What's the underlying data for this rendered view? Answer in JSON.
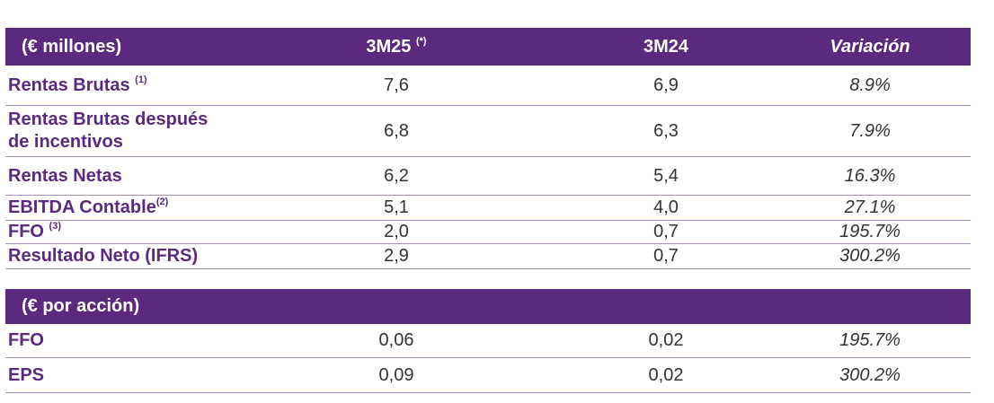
{
  "table1": {
    "header": {
      "col1": "(€ millones)",
      "col2": "3M25",
      "col2_sup": "(*)",
      "col3": "3M24",
      "col4": "Variación"
    },
    "rows": [
      {
        "label": "Rentas Brutas ",
        "sup": "(1)",
        "v1": "7,6",
        "v2": "6,9",
        "var": "8.9%"
      },
      {
        "label_line1": "Rentas Brutas después",
        "label_line2": "de incentivos",
        "v1": "6,8",
        "v2": "6,3",
        "var": "7.9%"
      },
      {
        "label": "Rentas Netas",
        "v1": "6,2",
        "v2": "5,4",
        "var": "16.3%"
      },
      {
        "label": "EBITDA Contable",
        "sup": "(2)",
        "v1": "5,1",
        "v2": "4,0",
        "var": "27.1%"
      },
      {
        "label": "FFO ",
        "sup": "(3)",
        "v1": "2,0",
        "v2": "0,7",
        "var": "195.7%"
      },
      {
        "label": "Resultado Neto (IFRS)",
        "v1": "2,9",
        "v2": "0,7",
        "var": "300.2%"
      }
    ]
  },
  "table2": {
    "header": {
      "col1": "(€ por acción)"
    },
    "rows": [
      {
        "label": "FFO",
        "v1": "0,06",
        "v2": "0,02",
        "var": "195.7%"
      },
      {
        "label": "EPS",
        "v1": "0,09",
        "v2": "0,02",
        "var": "300.2%"
      }
    ]
  }
}
